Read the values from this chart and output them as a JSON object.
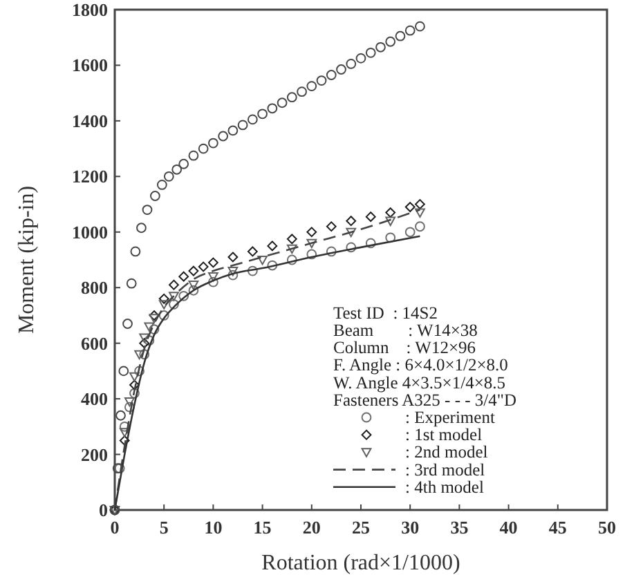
{
  "chart_data": {
    "type": "scatter",
    "xlabel": "Rotation (rad×1/1000)",
    "ylabel": "Moment (kip-in)",
    "xlim": [
      0,
      50
    ],
    "xticks": [
      0,
      5,
      10,
      15,
      20,
      25,
      30,
      35,
      40,
      45,
      50
    ],
    "ylim": [
      0,
      1800
    ],
    "yticks": [
      0,
      200,
      400,
      600,
      800,
      1000,
      1200,
      1400,
      1600,
      1800
    ],
    "grid": false,
    "legend": "bottom right",
    "annotations": [
      "Test ID  : 14S2",
      "Beam        : W14×38",
      "Column    : W12×96",
      "F. Angle : 6×4.0×1/2×8.0",
      "W. Angle 4×3.5×1/4×8.5",
      "Fasteners A325 - - - 3/4\"D"
    ],
    "series": [
      {
        "name": ": Experiment",
        "marker": "circle",
        "color": "#707070",
        "x": [
          0,
          0.5,
          1,
          1.5,
          2,
          2.5,
          3,
          3.5,
          4,
          5,
          6,
          7,
          8,
          10,
          12,
          14,
          16,
          18,
          20,
          22,
          24,
          26,
          28,
          30,
          31
        ],
        "values": [
          0,
          150,
          300,
          370,
          420,
          500,
          560,
          610,
          650,
          700,
          740,
          770,
          790,
          820,
          845,
          860,
          880,
          900,
          920,
          930,
          945,
          960,
          980,
          1000,
          1020
        ]
      },
      {
        "name": ": 1st model",
        "marker": "diamond",
        "color": "#1e1e1e",
        "x": [
          0,
          1,
          2,
          3,
          4,
          5,
          6,
          7,
          8,
          9,
          10,
          12,
          14,
          16,
          18,
          20,
          22,
          24,
          26,
          28,
          30,
          31
        ],
        "values": [
          0,
          250,
          450,
          600,
          700,
          760,
          810,
          840,
          860,
          875,
          890,
          910,
          930,
          950,
          975,
          1000,
          1020,
          1040,
          1055,
          1070,
          1090,
          1100
        ]
      },
      {
        "name": ": 2nd model",
        "marker": "triangle",
        "color": "#616161",
        "x": [
          0,
          1,
          1.5,
          2,
          2.5,
          3,
          3.5,
          4,
          5,
          6,
          8,
          10,
          12,
          15,
          18,
          20,
          24,
          28,
          31
        ],
        "values": [
          0,
          280,
          390,
          480,
          560,
          620,
          660,
          690,
          740,
          770,
          810,
          840,
          860,
          900,
          940,
          960,
          1000,
          1040,
          1070
        ]
      },
      {
        "name": ": 3rd model",
        "type": "line",
        "line_style": "dashed",
        "marker": "none",
        "color": "#444444",
        "x": [
          0,
          1,
          2,
          3,
          4,
          5,
          6,
          8,
          10,
          12,
          15,
          20,
          25,
          31
        ],
        "values": [
          0,
          230,
          430,
          580,
          670,
          730,
          770,
          830,
          860,
          880,
          910,
          960,
          1010,
          1080
        ]
      },
      {
        "name": ": 4th model",
        "type": "line",
        "line_style": "solid",
        "marker": "none",
        "color": "#333333",
        "x": [
          0,
          1,
          2,
          3,
          4,
          5,
          6,
          8,
          10,
          12,
          15,
          20,
          25,
          31
        ],
        "values": [
          0,
          200,
          380,
          530,
          630,
          690,
          730,
          790,
          825,
          850,
          870,
          910,
          945,
          985
        ]
      },
      {
        "marker": "circle",
        "color": "#484848",
        "x": [
          0,
          0.3,
          0.6,
          0.9,
          1.3,
          1.7,
          2.1,
          2.7,
          3.3,
          4.1,
          4.8,
          5.5,
          6.3,
          7,
          8,
          9,
          10,
          11,
          12,
          13,
          14,
          15,
          16,
          17,
          18,
          19,
          20,
          21,
          22,
          23,
          24,
          25,
          26,
          27,
          28,
          29,
          30,
          31
        ],
        "values": [
          0,
          150,
          340,
          500,
          670,
          815,
          930,
          1015,
          1080,
          1130,
          1170,
          1200,
          1225,
          1245,
          1275,
          1300,
          1320,
          1345,
          1365,
          1385,
          1405,
          1425,
          1445,
          1465,
          1485,
          1505,
          1525,
          1545,
          1565,
          1585,
          1605,
          1625,
          1645,
          1665,
          1685,
          1705,
          1725,
          1740
        ]
      }
    ]
  }
}
